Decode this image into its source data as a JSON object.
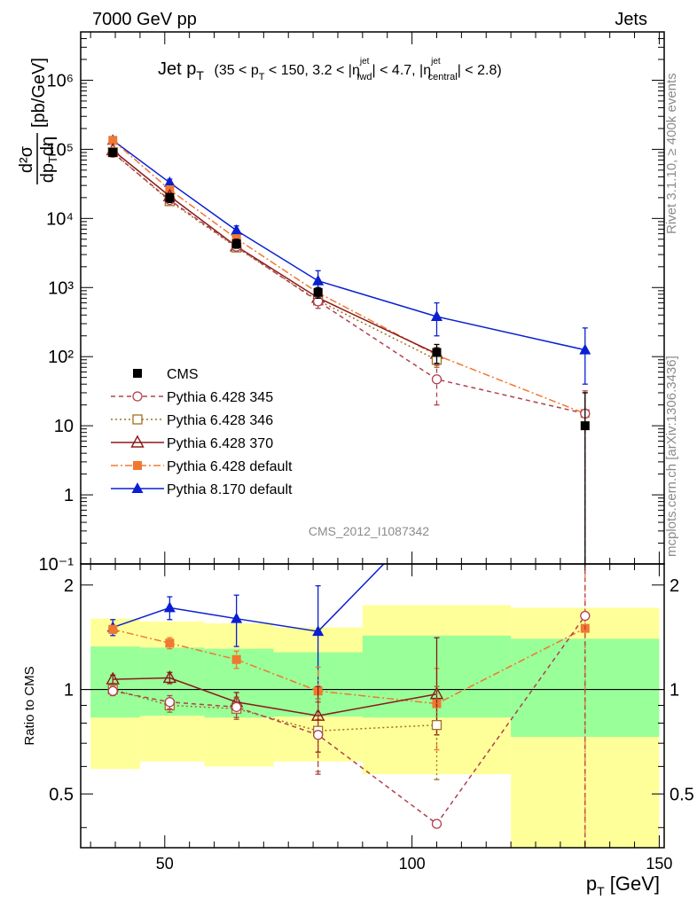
{
  "header": {
    "left": "7000 GeV pp",
    "right": "Jets",
    "rivet": "Rivet 3.1.10, ≥ 400k events",
    "mcplots": "mcplots.cern.ch [arXiv:1306.3436]",
    "analysis": "CMS_2012_I1087342"
  },
  "chart_data": [
    {
      "type": "line",
      "panel": "main",
      "title_main": "Jet p",
      "title_sub": "T",
      "title_range": "(35 < p",
      "title_range_sub": "T",
      "title_rest1": " < 150, 3.2 < |η",
      "title_sup1": "jet",
      "title_sub1": "fwd",
      "title_rest2": "| < 4.7, |η",
      "title_sup2": "jet",
      "title_sub2": "central",
      "title_rest3": "| < 2.8)",
      "ylabel": "dσ/dpTdη [pb/GeV]",
      "ylabel_units": "[pb/GeV]",
      "yscale": "log",
      "ylim": [
        0.1,
        5000000
      ],
      "xlim": [
        33,
        151
      ],
      "legend_position": "center-left",
      "ytick_labels": [
        "10⁻¹",
        "1",
        "10",
        "10²",
        "10³",
        "10⁴",
        "10⁵",
        "10⁶"
      ],
      "series": [
        {
          "name": "CMS",
          "color": "#000000",
          "marker": "filled-square",
          "line": "none",
          "x": [
            39.5,
            51,
            64.5,
            81,
            105,
            135
          ],
          "y": [
            90000,
            20000,
            4300,
            850,
            115,
            10
          ],
          "err": [
            [
              80000,
              100000
            ],
            [
              17000,
              23000
            ],
            [
              3700,
              5000
            ],
            [
              700,
              1000
            ],
            [
              80,
              150
            ],
            [
              0.01,
              30
            ]
          ]
        },
        {
          "name": "Pythia 6.428 345",
          "color": "#b04050",
          "marker": "open-circle",
          "line": "dashed",
          "x": [
            39.5,
            51,
            64.5,
            81,
            105,
            135
          ],
          "y": [
            89000,
            18500,
            3900,
            630,
            47,
            15
          ],
          "err": [
            [
              85000,
              93000
            ],
            [
              17500,
              19500
            ],
            [
              3600,
              4200
            ],
            [
              500,
              780
            ],
            [
              20,
              75
            ],
            [
              0.01,
              32
            ]
          ]
        },
        {
          "name": "Pythia 6.428 346",
          "color": "#a07020",
          "marker": "open-square",
          "line": "dotted",
          "x": [
            39.5,
            51,
            64.5,
            81,
            105
          ],
          "y": [
            91000,
            17800,
            3800,
            650,
            90
          ],
          "err": [
            [
              87000,
              95000
            ],
            [
              17000,
              18600
            ],
            [
              3550,
              4050
            ],
            [
              550,
              750
            ],
            [
              70,
              110
            ]
          ]
        },
        {
          "name": "Pythia 6.428 370",
          "color": "#8b1a1a",
          "marker": "open-triangle",
          "line": "solid",
          "x": [
            39.5,
            51,
            64.5,
            81,
            105
          ],
          "y": [
            97000,
            21000,
            3950,
            710,
            110
          ],
          "err": [
            [
              93000,
              101000
            ],
            [
              20000,
              22000
            ],
            [
              3700,
              4200
            ],
            [
              600,
              820
            ],
            [
              85,
              135
            ]
          ]
        },
        {
          "name": "Pythia 6.428 default",
          "color": "#f07830",
          "marker": "filled-square",
          "line": "dashdot",
          "x": [
            39.5,
            51,
            64.5,
            81,
            105,
            135
          ],
          "y": [
            135000,
            26000,
            5100,
            840,
            105,
            15
          ],
          "err": [
            [
              130000,
              140000
            ],
            [
              25000,
              27000
            ],
            [
              4850,
              5350
            ],
            [
              760,
              920
            ],
            [
              90,
              120
            ],
            [
              0.01,
              30
            ]
          ]
        },
        {
          "name": "Pythia 8.170 default",
          "color": "#0a20d0",
          "marker": "filled-triangle",
          "line": "solid",
          "x": [
            39.5,
            51,
            64.5,
            81,
            105,
            135
          ],
          "y": [
            135000,
            33000,
            6700,
            1250,
            380,
            125
          ],
          "err": [
            [
              125000,
              145000
            ],
            [
              29000,
              37000
            ],
            [
              5600,
              7800
            ],
            [
              850,
              1750
            ],
            [
              200,
              600
            ],
            [
              40,
              260
            ]
          ]
        }
      ]
    },
    {
      "type": "line",
      "panel": "ratio",
      "ylabel": "Ratio to CMS",
      "yscale": "log",
      "ylim": [
        0.35,
        2.3
      ],
      "xlim": [
        33,
        151
      ],
      "ytick_labels": [
        "0.5",
        "1",
        "2"
      ],
      "xlabel": "p",
      "xlabel_sub": "T",
      "xlabel_units": " [GeV]",
      "xtick_labels": [
        "50",
        "100",
        "150"
      ],
      "bands": {
        "x_edges": [
          35,
          45,
          58,
          72,
          90,
          120,
          150
        ],
        "inner": [
          [
            0.83,
            1.33
          ],
          [
            0.84,
            1.32
          ],
          [
            0.83,
            1.31
          ],
          [
            0.835,
            1.28
          ],
          [
            0.83,
            1.43
          ],
          [
            0.73,
            1.4
          ]
        ],
        "outer": [
          [
            0.59,
            1.6
          ],
          [
            0.62,
            1.57
          ],
          [
            0.6,
            1.55
          ],
          [
            0.62,
            1.51
          ],
          [
            0.57,
            1.75
          ],
          [
            0.32,
            1.72
          ]
        ]
      },
      "series": [
        {
          "name": "Pythia 6.428 345",
          "color": "#b04050",
          "marker": "open-circle",
          "line": "dashed",
          "x": [
            39.5,
            51,
            64.5,
            81,
            105,
            135
          ],
          "y": [
            0.99,
            0.92,
            0.89,
            0.74,
            0.41,
            1.63
          ],
          "err": [
            [
              0.96,
              1.02
            ],
            [
              0.88,
              0.96
            ],
            [
              0.83,
              0.95
            ],
            [
              0.57,
              0.92
            ],
            [
              0.41,
              0.41
            ],
            [
              0.32,
              2.3
            ]
          ]
        },
        {
          "name": "Pythia 6.428 346",
          "color": "#a07020",
          "marker": "open-square",
          "line": "dotted",
          "x": [
            39.5,
            51,
            64.5,
            81,
            105
          ],
          "y": [
            1.0,
            0.9,
            0.88,
            0.76,
            0.79
          ],
          "err": [
            [
              0.97,
              1.03
            ],
            [
              0.86,
              0.94
            ],
            [
              0.82,
              0.94
            ],
            [
              0.58,
              0.94
            ],
            [
              0.55,
              1.02
            ]
          ]
        },
        {
          "name": "Pythia 6.428 370",
          "color": "#8b1a1a",
          "marker": "open-triangle",
          "line": "solid",
          "x": [
            39.5,
            51,
            64.5,
            81,
            105
          ],
          "y": [
            1.07,
            1.08,
            0.92,
            0.84,
            0.97
          ],
          "err": [
            [
              1.04,
              1.1
            ],
            [
              1.04,
              1.12
            ],
            [
              0.86,
              0.98
            ],
            [
              0.66,
              1.02
            ],
            [
              0.74,
              1.41
            ]
          ]
        },
        {
          "name": "Pythia 6.428 default",
          "color": "#f07830",
          "marker": "filled-square",
          "line": "dashdot",
          "x": [
            39.5,
            51,
            64.5,
            81,
            105,
            135
          ],
          "y": [
            1.49,
            1.36,
            1.22,
            0.99,
            0.91,
            1.5
          ],
          "err": [
            [
              1.45,
              1.53
            ],
            [
              1.31,
              1.41
            ],
            [
              1.15,
              1.29
            ],
            [
              0.82,
              1.16
            ],
            [
              0.67,
              1.15
            ],
            [
              0.32,
              2.3
            ]
          ]
        },
        {
          "name": "Pythia 8.170 default",
          "color": "#0a20d0",
          "marker": "filled-triangle",
          "line": "solid",
          "x": [
            39.5,
            51,
            64.5,
            81,
            105
          ],
          "y": [
            1.51,
            1.72,
            1.6,
            1.47,
            3.3
          ],
          "err": [
            [
              1.43,
              1.59
            ],
            [
              1.59,
              1.85
            ],
            [
              1.33,
              1.87
            ],
            [
              1.0,
              1.99
            ],
            [
              3.0,
              3.6
            ]
          ]
        }
      ]
    }
  ]
}
